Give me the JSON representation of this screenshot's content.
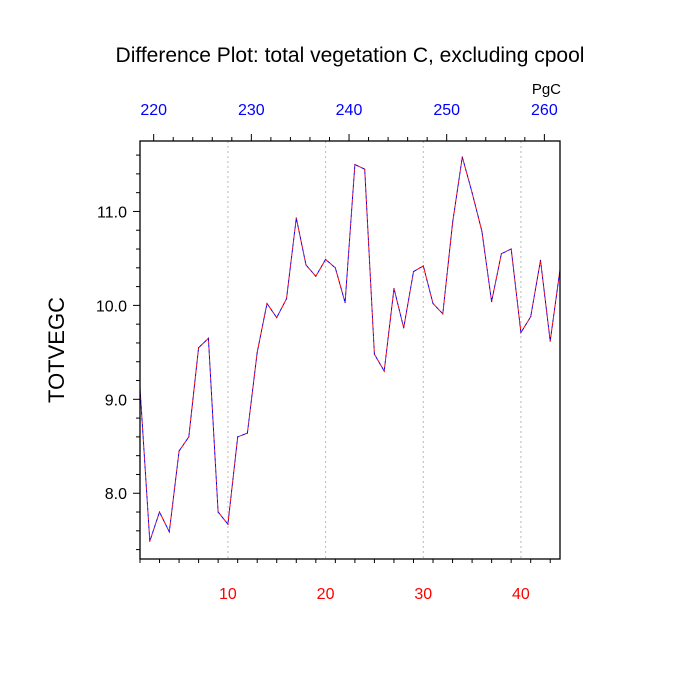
{
  "chart_data": {
    "type": "line",
    "title": "Difference Plot: total vegetation C, excluding cpool",
    "ylabel": "TOTVEGC",
    "xlabel": "",
    "x_range": [
      1,
      44
    ],
    "y_range": [
      7.3,
      11.75
    ],
    "bottom_axis": {
      "ticks": [
        10,
        20,
        30,
        40
      ],
      "labels": [
        "10",
        "20",
        "30",
        "40"
      ],
      "color": "#ff0000"
    },
    "top_axis": {
      "ticks": [
        220,
        230,
        240,
        250,
        260
      ],
      "labels": [
        "220",
        "230",
        "240",
        "250",
        "260"
      ],
      "unit": "PgC",
      "color": "#0000ff",
      "top_value_at_left": 218.6,
      "top_value_per_x_unit": 1.0
    },
    "left_axis": {
      "ticks": [
        8.0,
        9.0,
        10.0,
        11.0
      ],
      "labels": [
        "8.0",
        "9.0",
        "10.0",
        "11.0"
      ],
      "minor_step": 0.2
    },
    "grid": {
      "vertical_at_bottom_ticks": true,
      "style": "dotted"
    },
    "series": [
      {
        "name": "TOTVEGC",
        "line_style": "dashed",
        "colors": [
          "#0000ff",
          "#ff0000"
        ],
        "x": [
          1,
          2,
          3,
          4,
          5,
          6,
          7,
          8,
          9,
          10,
          11,
          12,
          13,
          14,
          15,
          16,
          17,
          18,
          19,
          20,
          21,
          22,
          23,
          24,
          25,
          26,
          27,
          28,
          29,
          30,
          31,
          32,
          33,
          34,
          35,
          36,
          37,
          38,
          39,
          40,
          41,
          42,
          43,
          44
        ],
        "values": [
          9.12,
          7.49,
          7.8,
          7.59,
          8.45,
          8.6,
          9.55,
          9.65,
          7.8,
          7.67,
          8.6,
          8.64,
          9.5,
          10.02,
          9.87,
          10.07,
          10.93,
          10.43,
          10.31,
          10.49,
          10.4,
          10.03,
          11.5,
          11.45,
          9.48,
          9.3,
          10.18,
          9.76,
          10.36,
          10.42,
          10.02,
          9.91,
          10.88,
          11.58,
          11.2,
          10.79,
          10.04,
          10.55,
          10.6,
          9.71,
          9.88,
          10.48,
          9.62,
          10.38
        ]
      }
    ]
  }
}
